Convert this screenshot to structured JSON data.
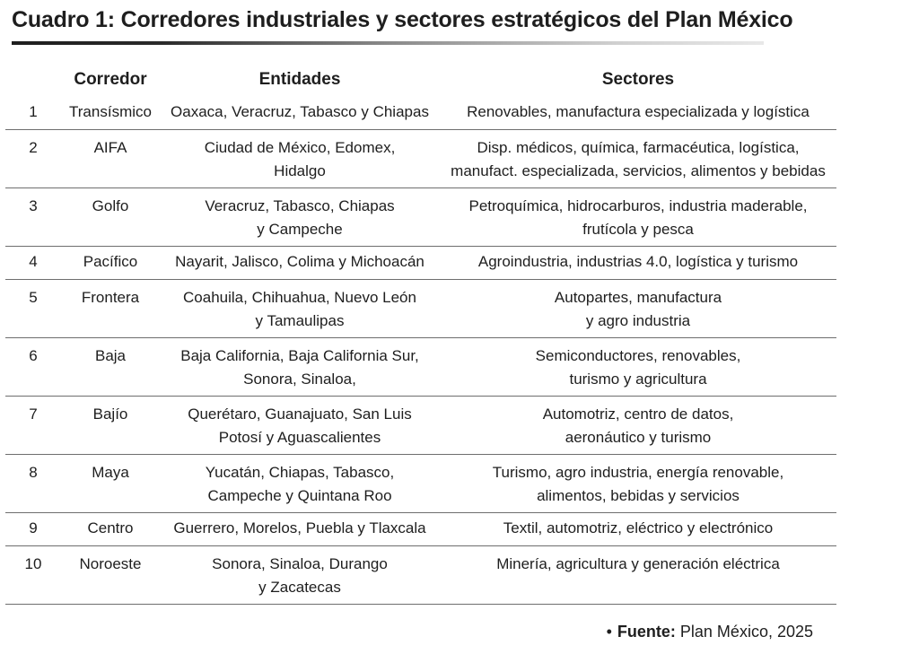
{
  "title": "Cuadro 1: Corredores industriales y sectores estratégicos del Plan México",
  "headers": {
    "num": "",
    "corredor": "Corredor",
    "entidades": "Entidades",
    "sectores": "Sectores"
  },
  "rows": [
    {
      "num": "1",
      "corredor": "Transísmico",
      "entidades": [
        "Oaxaca, Veracruz, Tabasco y Chiapas"
      ],
      "sectores": [
        "Renovables, manufactura especializada y logística"
      ]
    },
    {
      "num": "2",
      "corredor": "AIFA",
      "entidades": [
        "Ciudad de México, Edomex,",
        "Hidalgo"
      ],
      "sectores": [
        "Disp. médicos, química, farmacéutica, logística,",
        "manufact. especializada, servicios, alimentos y bebidas"
      ]
    },
    {
      "num": "3",
      "corredor": "Golfo",
      "entidades": [
        "Veracruz, Tabasco, Chiapas",
        "y Campeche"
      ],
      "sectores": [
        "Petroquímica, hidrocarburos, industria maderable,",
        "frutícola y pesca"
      ]
    },
    {
      "num": "4",
      "corredor": "Pacífico",
      "entidades": [
        "Nayarit, Jalisco, Colima y Michoacán"
      ],
      "sectores": [
        "Agroindustria, industrias 4.0, logística y turismo"
      ]
    },
    {
      "num": "5",
      "corredor": "Frontera",
      "entidades": [
        "Coahuila, Chihuahua, Nuevo León",
        "y Tamaulipas"
      ],
      "sectores": [
        "Autopartes, manufactura",
        "y agro industria"
      ]
    },
    {
      "num": "6",
      "corredor": "Baja",
      "entidades": [
        "Baja California, Baja California Sur,",
        "Sonora, Sinaloa,"
      ],
      "sectores": [
        "Semiconductores, renovables,",
        "turismo y agricultura"
      ]
    },
    {
      "num": "7",
      "corredor": "Bajío",
      "entidades": [
        "Querétaro, Guanajuato, San Luis",
        "Potosí y Aguascalientes"
      ],
      "sectores": [
        "Automotriz, centro de datos,",
        "aeronáutico y turismo"
      ]
    },
    {
      "num": "8",
      "corredor": "Maya",
      "entidades": [
        "Yucatán, Chiapas, Tabasco,",
        "Campeche y Quintana Roo"
      ],
      "sectores": [
        "Turismo, agro industria, energía renovable,",
        "alimentos, bebidas y servicios"
      ]
    },
    {
      "num": "9",
      "corredor": "Centro",
      "entidades": [
        "Guerrero, Morelos, Puebla y Tlaxcala"
      ],
      "sectores": [
        "Textil, automotriz, eléctrico y electrónico"
      ]
    },
    {
      "num": "10",
      "corredor": "Noroeste",
      "entidades": [
        "Sonora, Sinaloa, Durango",
        "y Zacatecas"
      ],
      "sectores": [
        "Minería, agricultura y generación eléctrica"
      ]
    }
  ],
  "source": {
    "bullet": "•",
    "label": "Fuente:",
    "text": " Plan México, 2025"
  }
}
